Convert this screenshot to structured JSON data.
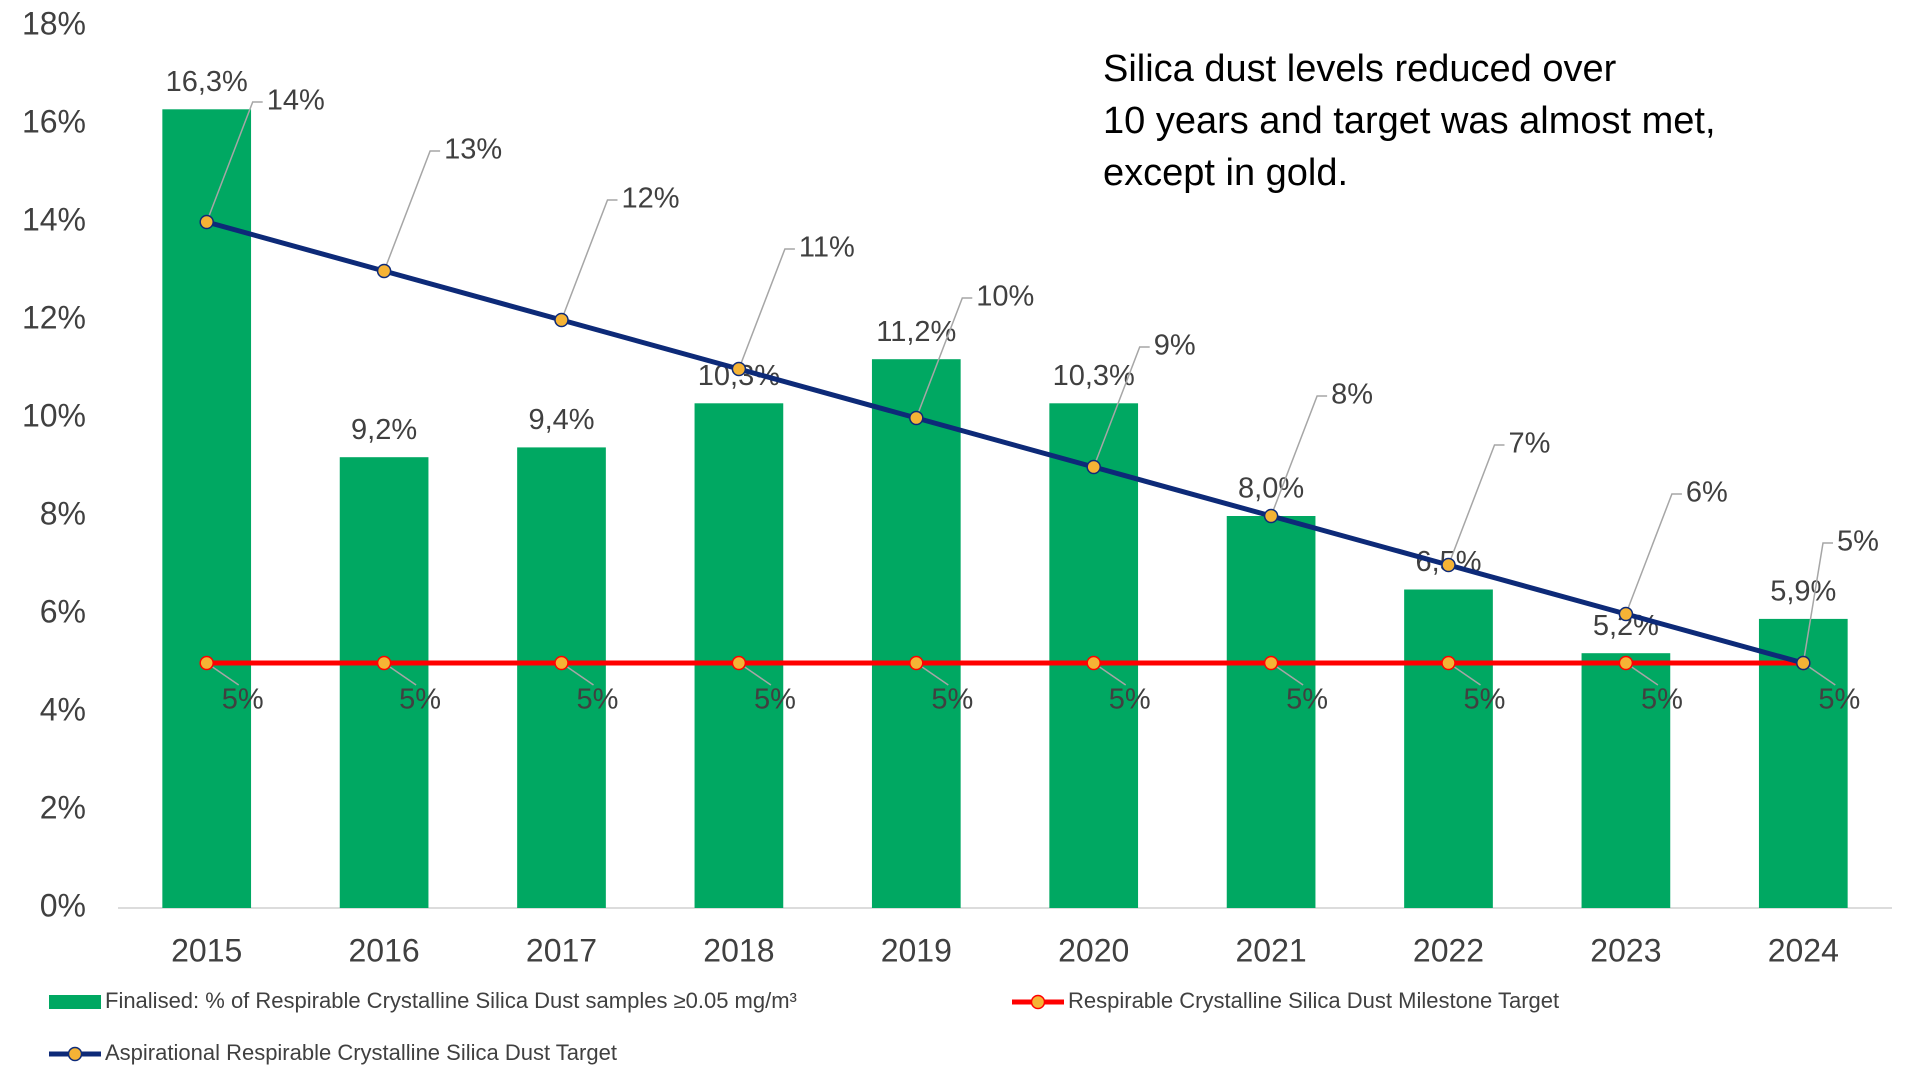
{
  "chart_data": {
    "type": "bar_line",
    "annotation": [
      "Silica dust levels reduced over",
      "10 years and target was almost met,",
      "except in gold."
    ],
    "categories": [
      "2015",
      "2016",
      "2017",
      "2018",
      "2019",
      "2020",
      "2021",
      "2022",
      "2023",
      "2024"
    ],
    "series": [
      {
        "name": "Finalised: % of Respirable Crystalline Silica Dust samples ≥0.05 mg/m³",
        "type": "bar",
        "color": "#00a862",
        "values": [
          16.3,
          9.2,
          9.4,
          10.3,
          11.2,
          10.3,
          8.0,
          6.5,
          5.2,
          5.9
        ],
        "value_labels": [
          "16,3%",
          "9,2%",
          "9,4%",
          "10,3%",
          "11,2%",
          "10,3%",
          "8,0%",
          "6,5%",
          "5,2%",
          "5,9%"
        ]
      },
      {
        "name": "Respirable Crystalline Silica Dust Milestone Target",
        "type": "line",
        "color": "#ff0000",
        "marker_color": "#f5b335",
        "values": [
          5,
          5,
          5,
          5,
          5,
          5,
          5,
          5,
          5,
          5
        ],
        "value_labels": [
          "5%",
          "5%",
          "5%",
          "5%",
          "5%",
          "5%",
          "5%",
          "5%",
          "5%",
          "5%"
        ]
      },
      {
        "name": "Aspirational Respirable  Crystalline Silica Dust Target",
        "type": "line",
        "color": "#0d2a78",
        "marker_color": "#f5b335",
        "values": [
          14,
          13,
          12,
          11,
          10,
          9,
          8,
          7,
          6,
          5
        ],
        "value_labels": [
          "14%",
          "13%",
          "12%",
          "11%",
          "10%",
          "9%",
          "8%",
          "7%",
          "6%",
          "5%"
        ]
      }
    ],
    "ylim": [
      0,
      18
    ],
    "yticks": [
      {
        "value": 0,
        "label": "0%"
      },
      {
        "value": 2,
        "label": "2%"
      },
      {
        "value": 4,
        "label": "4%"
      },
      {
        "value": 6,
        "label": "6%"
      },
      {
        "value": 8,
        "label": "8%"
      },
      {
        "value": 10,
        "label": "10%"
      },
      {
        "value": 12,
        "label": "12%"
      },
      {
        "value": 14,
        "label": "14%"
      },
      {
        "value": 16,
        "label": "16%"
      },
      {
        "value": 18,
        "label": "18%"
      }
    ],
    "grid": false,
    "legend": "bottom"
  }
}
